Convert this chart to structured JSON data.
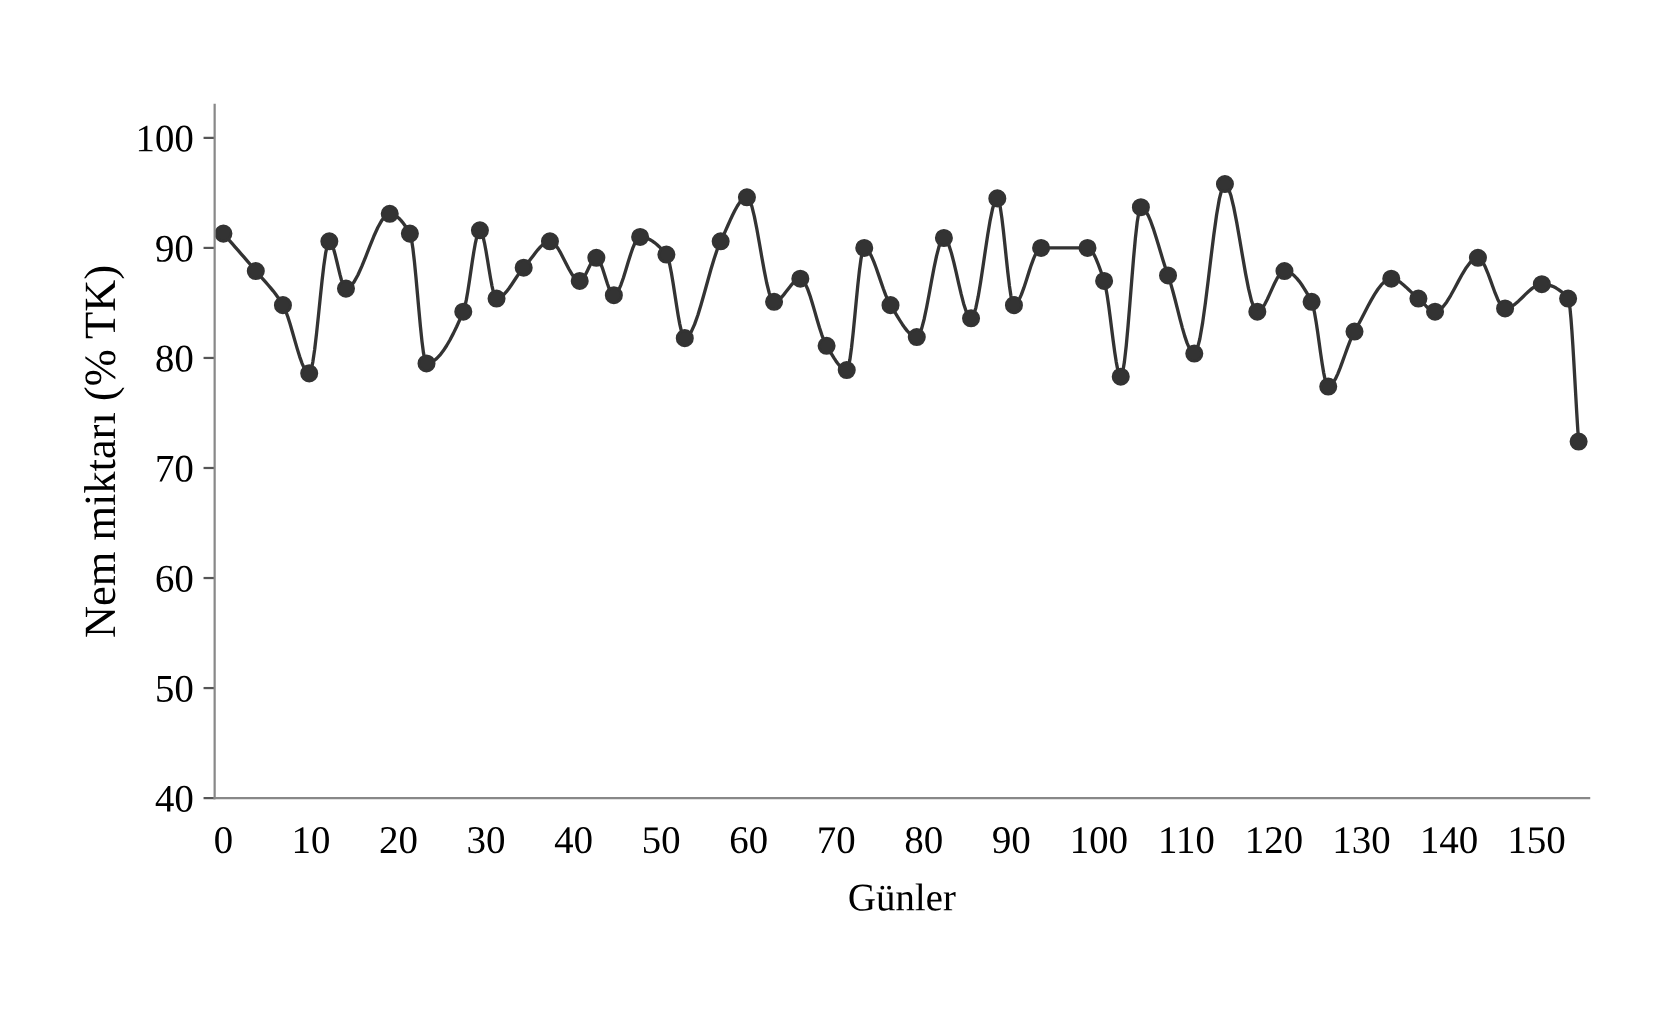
{
  "chart_data": {
    "type": "line",
    "xlabel": "Günler",
    "ylabel": "Nem miktarı (% TK)",
    "x": [
      0,
      3.7,
      6.8,
      9.8,
      12.1,
      14,
      19,
      21.3,
      23.2,
      27.4,
      29.3,
      31.2,
      34.3,
      37.3,
      40.7,
      42.6,
      44.6,
      47.6,
      50.6,
      52.7,
      56.8,
      59.8,
      62.9,
      65.9,
      68.9,
      71.2,
      73.2,
      76.2,
      79.2,
      82.3,
      85.4,
      88.4,
      90.3,
      93.4,
      98.7,
      100.6,
      102.5,
      104.8,
      107.9,
      110.9,
      114.4,
      118.1,
      121.2,
      124.3,
      126.2,
      129.2,
      133.4,
      136.5,
      138.4,
      143.3,
      146.4,
      150.6,
      153.6,
      154.8
    ],
    "series": [
      {
        "color": "#333333",
        "marker": "circle",
        "line_style": "solid",
        "values": [
          91.3,
          87.9,
          84.8,
          78.6,
          90.6,
          86.3,
          93.1,
          91.3,
          79.5,
          84.2,
          91.6,
          85.4,
          88.2,
          90.6,
          87.0,
          89.1,
          85.7,
          91.0,
          89.4,
          81.8,
          90.6,
          94.6,
          85.1,
          87.2,
          81.1,
          78.9,
          90.0,
          84.8,
          81.9,
          90.9,
          83.6,
          94.5,
          84.8,
          90.0,
          90.0,
          87.0,
          78.3,
          93.7,
          87.5,
          80.4,
          95.8,
          84.2,
          87.9,
          85.1,
          77.4,
          82.4,
          87.2,
          85.4,
          84.2,
          89.1,
          84.5,
          86.7,
          85.4,
          72.4
        ]
      }
    ],
    "xlim": [
      -1,
      156
    ],
    "ylim": [
      40,
      103
    ],
    "xticks": [
      0,
      10,
      20,
      30,
      40,
      50,
      60,
      70,
      80,
      90,
      100,
      110,
      120,
      130,
      140,
      150
    ],
    "yticks": [
      40,
      50,
      60,
      70,
      80,
      90,
      100
    ],
    "grid": false,
    "legend": false
  }
}
